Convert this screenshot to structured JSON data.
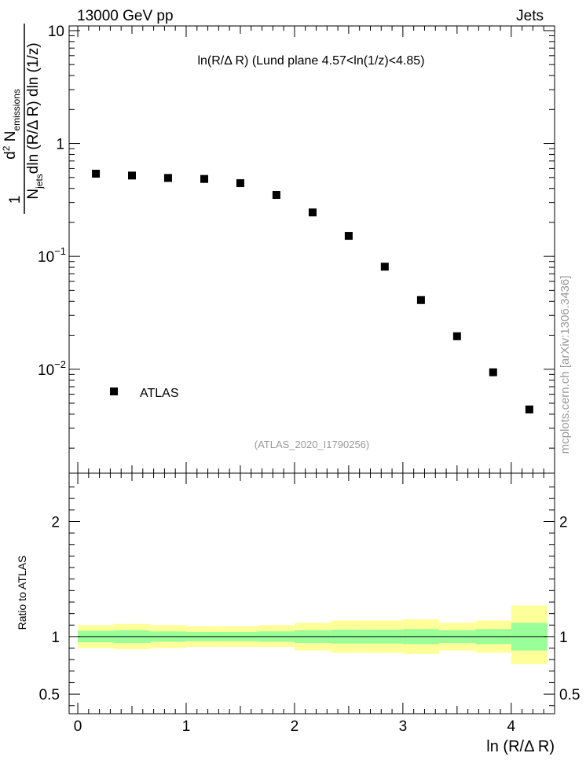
{
  "header": {
    "left": "13000 GeV pp",
    "right": "Jets"
  },
  "watermark": "mcplots.cern.ch [arXiv:1306.3436]",
  "chart_data": [
    {
      "type": "scatter",
      "panel": "main",
      "title": "ln(R/Δ R) (Lund plane 4.57<ln(1/z)<4.85)",
      "ylabel_parts": {
        "frac_one": "1",
        "num": "d² N",
        "num_sup": "2",
        "num_sub": "emissions",
        "den_a": "N",
        "den_sub": "jets",
        "den_b": "dln (R/Δ R) dln (1/z)"
      },
      "yscale": "log",
      "ylim": [
        0.0012,
        11
      ],
      "xlim": [
        -0.08,
        4.4
      ],
      "ytick_labels": [
        {
          "value": 10,
          "base": "10",
          "exp": ""
        },
        {
          "value": 1,
          "base": "1",
          "exp": ""
        },
        {
          "value": 0.1,
          "base": "10",
          "exp": "−1"
        },
        {
          "value": 0.01,
          "base": "10",
          "exp": "−2"
        }
      ],
      "legend": {
        "label": "ATLAS",
        "placement": "bottom-left"
      },
      "annotation": "(ATLAS_2020_I1790256)",
      "series": [
        {
          "name": "ATLAS",
          "color": "#000000",
          "x": [
            0.167,
            0.5,
            0.833,
            1.167,
            1.5,
            1.833,
            2.167,
            2.5,
            2.833,
            3.167,
            3.5,
            3.833,
            4.167
          ],
          "y": [
            0.54,
            0.52,
            0.495,
            0.485,
            0.445,
            0.35,
            0.245,
            0.152,
            0.081,
            0.041,
            0.0196,
            0.0094,
            0.0044
          ]
        }
      ]
    },
    {
      "type": "area",
      "panel": "ratio",
      "ylabel": "Ratio to ATLAS",
      "ylim": [
        0.33,
        2.42
      ],
      "xlim": [
        -0.08,
        4.4
      ],
      "xlabel": "ln (R/Δ R)",
      "xtick_labels": [
        "0",
        "1",
        "2",
        "3",
        "4"
      ],
      "ytick_labels": [
        "2",
        "1",
        "0.5"
      ],
      "reference_line": 1,
      "bin_edges": [
        0,
        0.333,
        0.667,
        1,
        1.333,
        1.667,
        2,
        2.333,
        2.667,
        3,
        3.333,
        3.667,
        4,
        4.333
      ],
      "band_total": {
        "color": "#ffff99",
        "lower": [
          0.9,
          0.89,
          0.9,
          0.91,
          0.91,
          0.91,
          0.88,
          0.86,
          0.86,
          0.85,
          0.88,
          0.86,
          0.76
        ],
        "upper": [
          1.1,
          1.11,
          1.1,
          1.09,
          1.09,
          1.1,
          1.12,
          1.14,
          1.14,
          1.15,
          1.12,
          1.14,
          1.27
        ]
      },
      "band_stat": {
        "color": "#99ff99",
        "lower": [
          0.95,
          0.945,
          0.955,
          0.96,
          0.96,
          0.955,
          0.945,
          0.94,
          0.94,
          0.935,
          0.945,
          0.935,
          0.88
        ],
        "upper": [
          1.05,
          1.055,
          1.045,
          1.04,
          1.04,
          1.045,
          1.055,
          1.06,
          1.06,
          1.065,
          1.055,
          1.065,
          1.12
        ]
      }
    }
  ]
}
